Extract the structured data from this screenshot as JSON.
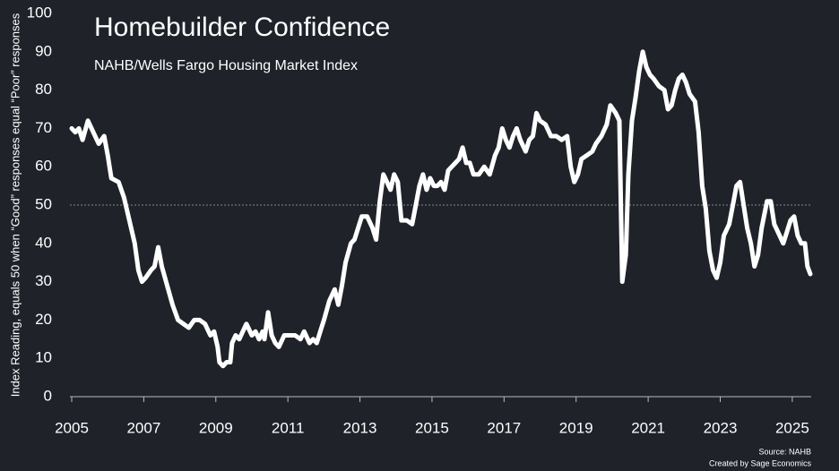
{
  "chart_data": {
    "type": "line",
    "title": "Homebuilder Confidence",
    "subtitle": "NAHB/Wells Fargo Housing Market Index",
    "y_label": "Index Reading, equals 50 when “Good” responses equal “Poor” responses",
    "source": "Source: NAHB",
    "credit": "Created by Sage Economics",
    "xlim": [
      2005,
      2025.6
    ],
    "ylim": [
      0,
      100
    ],
    "xticks": [
      2005,
      2007,
      2009,
      2011,
      2013,
      2015,
      2017,
      2019,
      2021,
      2023,
      2025
    ],
    "yticks": [
      0,
      10,
      20,
      30,
      40,
      50,
      60,
      70,
      80,
      90,
      100
    ],
    "reference_line": 50,
    "line_color": "#ffffff",
    "x": [
      2005.0,
      2005.1,
      2005.2,
      2005.3,
      2005.45,
      2005.6,
      2005.75,
      2005.9,
      2006.0,
      2006.1,
      2006.3,
      2006.45,
      2006.6,
      2006.75,
      2006.85,
      2006.95,
      2007.05,
      2007.2,
      2007.3,
      2007.4,
      2007.5,
      2007.65,
      2007.8,
      2007.95,
      2008.1,
      2008.25,
      2008.4,
      2008.55,
      2008.7,
      2008.85,
      2008.95,
      2009.05,
      2009.1,
      2009.2,
      2009.3,
      2009.4,
      2009.45,
      2009.55,
      2009.65,
      2009.75,
      2009.85,
      2010.0,
      2010.1,
      2010.2,
      2010.3,
      2010.35,
      2010.45,
      2010.55,
      2010.65,
      2010.75,
      2010.9,
      2011.1,
      2011.2,
      2011.35,
      2011.45,
      2011.6,
      2011.7,
      2011.8,
      2011.9,
      2012.0,
      2012.15,
      2012.3,
      2012.4,
      2012.5,
      2012.6,
      2012.75,
      2012.85,
      2012.95,
      2013.05,
      2013.2,
      2013.35,
      2013.45,
      2013.55,
      2013.65,
      2013.75,
      2013.85,
      2013.95,
      2014.05,
      2014.15,
      2014.3,
      2014.45,
      2014.55,
      2014.65,
      2014.75,
      2014.85,
      2014.95,
      2015.05,
      2015.15,
      2015.25,
      2015.35,
      2015.45,
      2015.55,
      2015.65,
      2015.75,
      2015.85,
      2015.95,
      2016.05,
      2016.15,
      2016.3,
      2016.45,
      2016.6,
      2016.75,
      2016.85,
      2016.95,
      2017.05,
      2017.15,
      2017.25,
      2017.35,
      2017.45,
      2017.6,
      2017.7,
      2017.8,
      2017.9,
      2018.0,
      2018.15,
      2018.3,
      2018.45,
      2018.6,
      2018.75,
      2018.85,
      2018.95,
      2019.05,
      2019.15,
      2019.3,
      2019.45,
      2019.55,
      2019.7,
      2019.85,
      2019.95,
      2020.1,
      2020.2,
      2020.28,
      2020.38,
      2020.45,
      2020.55,
      2020.65,
      2020.75,
      2020.85,
      2020.95,
      2021.05,
      2021.15,
      2021.3,
      2021.45,
      2021.55,
      2021.65,
      2021.75,
      2021.85,
      2021.95,
      2022.05,
      2022.15,
      2022.3,
      2022.4,
      2022.5,
      2022.6,
      2022.7,
      2022.8,
      2022.9,
      2023.0,
      2023.1,
      2023.25,
      2023.35,
      2023.45,
      2023.55,
      2023.65,
      2023.75,
      2023.85,
      2023.95,
      2024.05,
      2024.15,
      2024.3,
      2024.4,
      2024.5,
      2024.65,
      2024.75,
      2024.85,
      2024.95,
      2025.05,
      2025.15,
      2025.25,
      2025.35,
      2025.42,
      2025.5
    ],
    "values": [
      70,
      69,
      70,
      67,
      72,
      69,
      66,
      68,
      63,
      57,
      56,
      52,
      46,
      40,
      33,
      30,
      31,
      33,
      34,
      39,
      34,
      29,
      24,
      20,
      19,
      18,
      20,
      20,
      19,
      16,
      17,
      13,
      9,
      8,
      9,
      9,
      14,
      16,
      15,
      17,
      19,
      16,
      17,
      15,
      17,
      15,
      22,
      16,
      14,
      13,
      16,
      16,
      16,
      15,
      17,
      14,
      15,
      14,
      17,
      20,
      25,
      28,
      24,
      29,
      35,
      40,
      41,
      44,
      47,
      47,
      44,
      41,
      51,
      58,
      56,
      54,
      58,
      56,
      46,
      46,
      45,
      50,
      55,
      58,
      54,
      57,
      55,
      55,
      56,
      54,
      59,
      60,
      61,
      62,
      65,
      61,
      61,
      58,
      58,
      60,
      58,
      63,
      65,
      70,
      67,
      65,
      68,
      70,
      67,
      64,
      67,
      68,
      74,
      72,
      71,
      68,
      68,
      67,
      68,
      60,
      56,
      58,
      62,
      63,
      64,
      66,
      68,
      71,
      76,
      74,
      72,
      30,
      37,
      58,
      72,
      78,
      85,
      90,
      86,
      84,
      83,
      81,
      80,
      75,
      76,
      80,
      83,
      84,
      82,
      79,
      77,
      69,
      55,
      49,
      38,
      33,
      31,
      35,
      42,
      45,
      50,
      55,
      56,
      50,
      44,
      40,
      34,
      37,
      44,
      51,
      51,
      45,
      42,
      40,
      43,
      46,
      47,
      42,
      40,
      40,
      34,
      32
    ]
  }
}
